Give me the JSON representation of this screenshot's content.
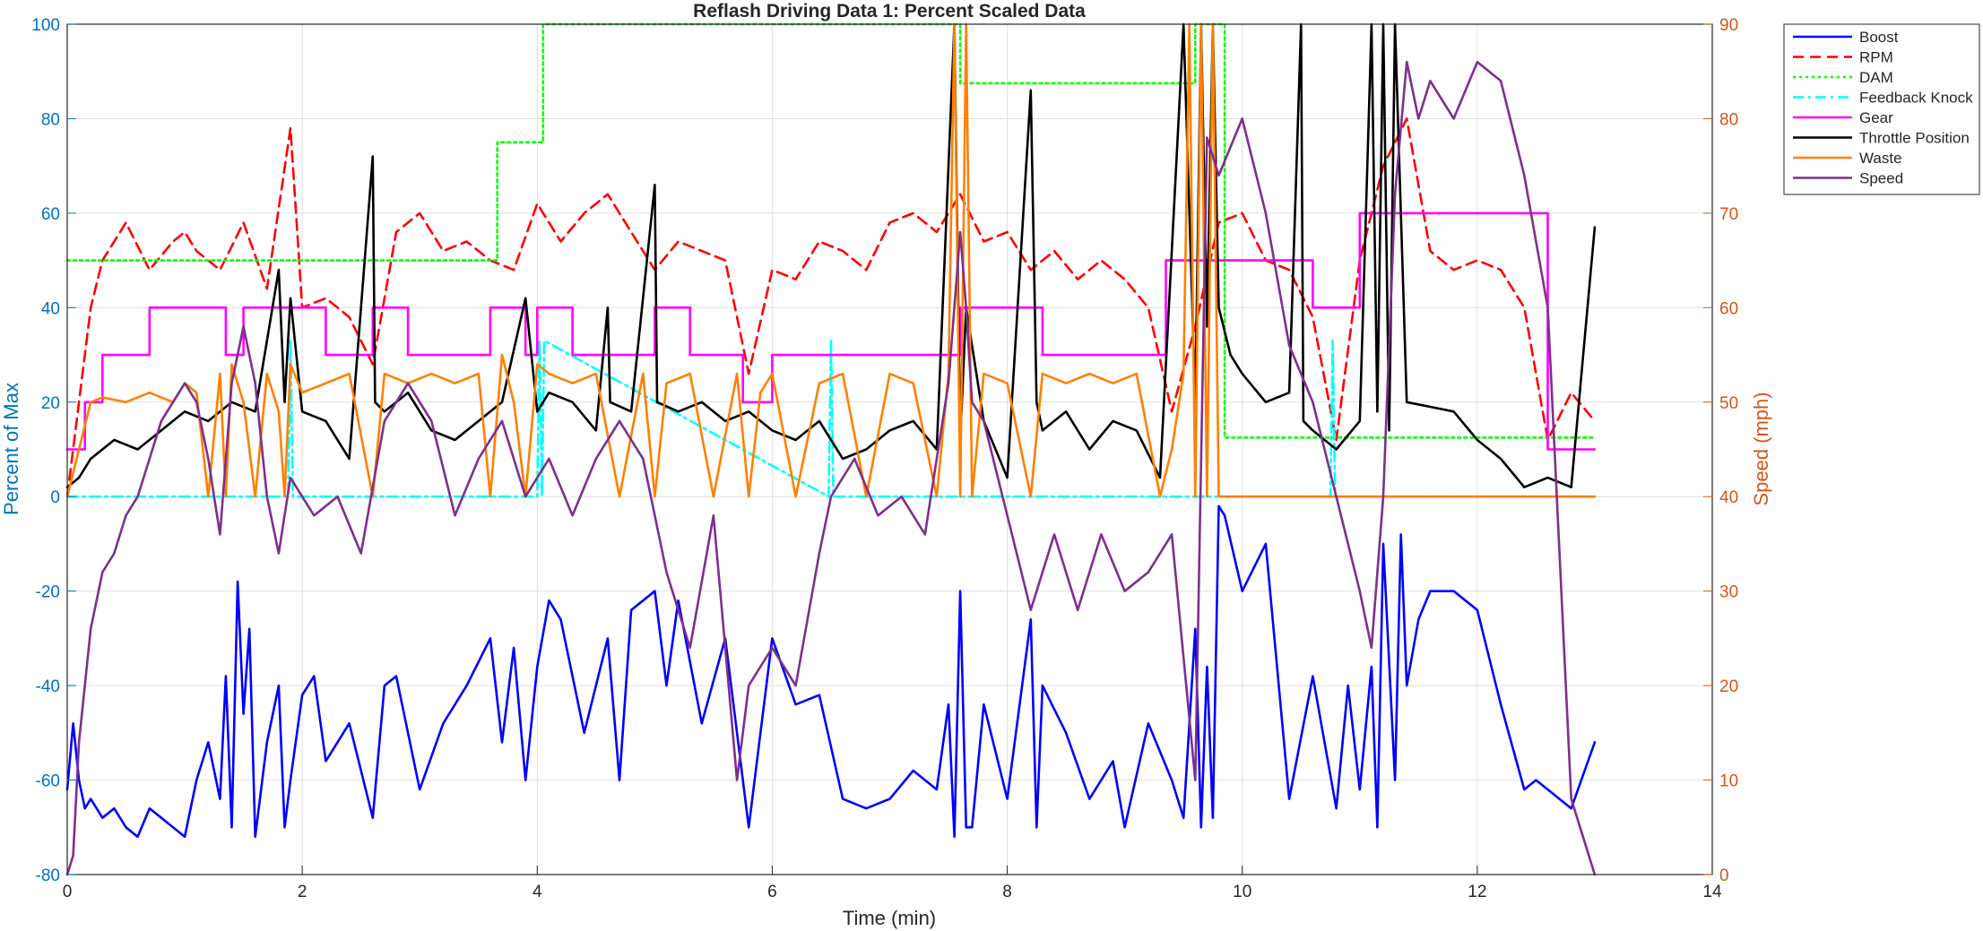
{
  "chart_data": {
    "type": "line",
    "title": "Reflash Driving Data 1: Percent Scaled Data",
    "xlabel": "Time (min)",
    "ylabel": "Percent of Max",
    "ylabel_right": "Speed (mph)",
    "xlim": [
      0,
      14
    ],
    "ylim": [
      -80,
      100
    ],
    "ylim_right": [
      0,
      90
    ],
    "x_ticks": [
      0,
      2,
      4,
      6,
      8,
      10,
      12,
      14
    ],
    "y_ticks": [
      -80,
      -60,
      -40,
      -20,
      0,
      20,
      40,
      60,
      80,
      100
    ],
    "y_ticks_right": [
      0,
      10,
      20,
      30,
      40,
      50,
      60,
      70,
      80,
      90
    ],
    "grid": true,
    "legend": "outside-top-right",
    "series": [
      {
        "name": "Boost",
        "color": "#0000ff",
        "style": "solid",
        "axis": "left",
        "x": [
          0,
          0.05,
          0.1,
          0.15,
          0.2,
          0.3,
          0.4,
          0.5,
          0.6,
          0.7,
          0.8,
          0.9,
          1.0,
          1.1,
          1.2,
          1.3,
          1.35,
          1.4,
          1.45,
          1.5,
          1.55,
          1.6,
          1.7,
          1.8,
          1.85,
          1.9,
          2.0,
          2.1,
          2.2,
          2.4,
          2.6,
          2.7,
          2.8,
          3.0,
          3.2,
          3.4,
          3.6,
          3.7,
          3.8,
          3.9,
          4.0,
          4.1,
          4.2,
          4.4,
          4.6,
          4.7,
          4.8,
          5.0,
          5.1,
          5.2,
          5.4,
          5.6,
          5.8,
          6.0,
          6.2,
          6.4,
          6.6,
          6.8,
          7.0,
          7.2,
          7.4,
          7.5,
          7.55,
          7.6,
          7.65,
          7.7,
          7.8,
          8.0,
          8.2,
          8.25,
          8.3,
          8.5,
          8.7,
          8.9,
          9.0,
          9.2,
          9.4,
          9.5,
          9.6,
          9.65,
          9.7,
          9.75,
          9.8,
          9.85,
          10.0,
          10.2,
          10.4,
          10.6,
          10.8,
          10.9,
          11.0,
          11.1,
          11.15,
          11.2,
          11.3,
          11.35,
          11.4,
          11.5,
          11.6,
          11.8,
          12.0,
          12.2,
          12.4,
          12.5,
          12.6,
          12.8,
          13.0
        ],
        "y": [
          -62,
          -48,
          -60,
          -66,
          -64,
          -68,
          -66,
          -70,
          -72,
          -66,
          -68,
          -70,
          -72,
          -60,
          -52,
          -64,
          -38,
          -70,
          -18,
          -46,
          -28,
          -72,
          -52,
          -40,
          -70,
          -60,
          -42,
          -38,
          -56,
          -48,
          -68,
          -40,
          -38,
          -62,
          -48,
          -40,
          -30,
          -52,
          -32,
          -60,
          -36,
          -22,
          -26,
          -50,
          -30,
          -60,
          -24,
          -20,
          -40,
          -22,
          -48,
          -30,
          -70,
          -30,
          -44,
          -42,
          -64,
          -66,
          -64,
          -58,
          -62,
          -44,
          -72,
          -20,
          -70,
          -70,
          -44,
          -64,
          -26,
          -70,
          -40,
          -50,
          -64,
          -56,
          -70,
          -48,
          -60,
          -68,
          -28,
          -70,
          -36,
          -68,
          -2,
          -4,
          -20,
          -10,
          -64,
          -38,
          -66,
          -40,
          -62,
          -36,
          -70,
          -10,
          -60,
          -8,
          -40,
          -26,
          -20,
          -20,
          -24,
          -44,
          -62,
          -60,
          -62,
          -66,
          -52
        ]
      },
      {
        "name": "RPM",
        "color": "#ff0000",
        "style": "dashed",
        "axis": "left",
        "x": [
          0,
          0.1,
          0.2,
          0.3,
          0.5,
          0.7,
          0.9,
          1.0,
          1.1,
          1.3,
          1.5,
          1.7,
          1.9,
          2.0,
          2.2,
          2.4,
          2.6,
          2.8,
          3.0,
          3.2,
          3.4,
          3.6,
          3.8,
          4.0,
          4.2,
          4.4,
          4.6,
          4.8,
          5.0,
          5.2,
          5.4,
          5.6,
          5.8,
          6.0,
          6.2,
          6.4,
          6.6,
          6.8,
          7.0,
          7.2,
          7.4,
          7.6,
          7.8,
          8.0,
          8.2,
          8.4,
          8.6,
          8.8,
          9.0,
          9.2,
          9.4,
          9.6,
          9.8,
          10.0,
          10.2,
          10.4,
          10.6,
          10.8,
          11.0,
          11.2,
          11.4,
          11.6,
          11.8,
          12.0,
          12.2,
          12.4,
          12.6,
          12.8,
          13.0
        ],
        "y": [
          0,
          20,
          40,
          50,
          58,
          48,
          54,
          56,
          52,
          48,
          58,
          44,
          78,
          40,
          42,
          38,
          28,
          56,
          60,
          52,
          54,
          50,
          48,
          62,
          54,
          60,
          64,
          56,
          48,
          54,
          52,
          50,
          26,
          48,
          46,
          54,
          52,
          48,
          58,
          60,
          56,
          64,
          54,
          56,
          48,
          52,
          46,
          50,
          46,
          40,
          18,
          36,
          58,
          60,
          50,
          48,
          38,
          12,
          50,
          70,
          80,
          52,
          48,
          50,
          48,
          40,
          12,
          22,
          16
        ]
      },
      {
        "name": "DAM",
        "color": "#00ff00",
        "style": "dotted",
        "axis": "left",
        "x": [
          0,
          3.66,
          3.66,
          4.05,
          4.05,
          7.6,
          7.6,
          9.6,
          9.6,
          9.85,
          9.85,
          13.0
        ],
        "y": [
          50,
          50,
          75,
          75,
          100,
          100,
          87.5,
          87.5,
          100,
          100,
          12.5,
          12.5
        ]
      },
      {
        "name": "Feedback Knock",
        "color": "#00ffff",
        "style": "dashdot",
        "axis": "left",
        "x": [
          0,
          1.88,
          1.9,
          1.92,
          4.0,
          4.02,
          4.04,
          4.06,
          6.48,
          6.5,
          6.52,
          10.75,
          10.77,
          10.79,
          13.0
        ],
        "y": [
          0,
          0,
          33,
          0,
          0,
          33,
          0,
          33,
          0,
          33,
          0,
          0,
          33,
          0,
          0
        ]
      },
      {
        "name": "Gear",
        "color": "#ff00ff",
        "style": "solid",
        "axis": "left",
        "x": [
          0,
          0.15,
          0.15,
          0.3,
          0.3,
          0.7,
          0.7,
          1.35,
          1.35,
          1.5,
          1.5,
          2.2,
          2.2,
          2.6,
          2.6,
          2.9,
          2.9,
          3.6,
          3.6,
          3.9,
          3.9,
          4.0,
          4.0,
          4.3,
          4.3,
          5.0,
          5.0,
          5.3,
          5.3,
          5.75,
          5.75,
          6.0,
          6.0,
          6.5,
          6.5,
          7.6,
          7.6,
          8.3,
          8.3,
          8.6,
          8.6,
          9.35,
          9.35,
          9.7,
          9.7,
          10.6,
          10.6,
          11.0,
          11.0,
          11.4,
          11.4,
          12.6,
          12.6,
          13.0
        ],
        "y": [
          10,
          10,
          20,
          20,
          30,
          30,
          40,
          40,
          30,
          30,
          40,
          40,
          30,
          30,
          40,
          40,
          30,
          30,
          40,
          40,
          30,
          30,
          40,
          40,
          30,
          30,
          40,
          40,
          30,
          30,
          20,
          20,
          30,
          30,
          30,
          30,
          40,
          40,
          30,
          30,
          30,
          30,
          50,
          50,
          50,
          50,
          40,
          40,
          60,
          60,
          60,
          60,
          10,
          10
        ]
      },
      {
        "name": "Throttle Position",
        "color": "#000000",
        "style": "solid",
        "axis": "left",
        "x": [
          0,
          0.1,
          0.2,
          0.3,
          0.4,
          0.6,
          0.8,
          1.0,
          1.2,
          1.4,
          1.6,
          1.8,
          1.85,
          1.9,
          2.0,
          2.2,
          2.4,
          2.6,
          2.62,
          2.7,
          2.9,
          3.1,
          3.3,
          3.5,
          3.7,
          3.9,
          4.0,
          4.1,
          4.3,
          4.5,
          4.6,
          4.62,
          4.8,
          5.0,
          5.02,
          5.2,
          5.4,
          5.6,
          5.8,
          6.0,
          6.2,
          6.4,
          6.6,
          6.8,
          7.0,
          7.2,
          7.4,
          7.55,
          7.6,
          7.65,
          7.8,
          8.0,
          8.2,
          8.25,
          8.3,
          8.5,
          8.7,
          8.9,
          9.1,
          9.3,
          9.5,
          9.6,
          9.65,
          9.7,
          9.75,
          9.8,
          9.9,
          10.0,
          10.2,
          10.4,
          10.5,
          10.52,
          10.6,
          10.8,
          11.0,
          11.1,
          11.15,
          11.2,
          11.25,
          11.3,
          11.4,
          11.6,
          11.8,
          12.0,
          12.2,
          12.4,
          12.6,
          12.8,
          13.0
        ],
        "y": [
          2,
          4,
          8,
          10,
          12,
          10,
          14,
          18,
          16,
          20,
          18,
          48,
          20,
          42,
          18,
          16,
          8,
          72,
          20,
          18,
          22,
          14,
          12,
          16,
          20,
          42,
          18,
          22,
          20,
          14,
          40,
          20,
          18,
          66,
          20,
          18,
          20,
          16,
          18,
          14,
          12,
          16,
          8,
          10,
          14,
          16,
          10,
          100,
          12,
          40,
          16,
          4,
          86,
          20,
          14,
          18,
          10,
          16,
          14,
          4,
          100,
          20,
          100,
          36,
          100,
          40,
          30,
          26,
          20,
          22,
          100,
          16,
          14,
          10,
          16,
          100,
          18,
          100,
          14,
          100,
          20,
          19,
          18,
          12,
          8,
          2,
          4,
          2,
          57
        ]
      },
      {
        "name": "Waste",
        "color": "#ff8000",
        "style": "solid",
        "axis": "left",
        "x": [
          0,
          0.1,
          0.2,
          0.3,
          0.5,
          0.7,
          0.9,
          1.0,
          1.1,
          1.2,
          1.3,
          1.35,
          1.4,
          1.5,
          1.6,
          1.7,
          1.8,
          1.85,
          1.9,
          2.0,
          2.2,
          2.4,
          2.6,
          2.7,
          2.9,
          3.1,
          3.3,
          3.5,
          3.6,
          3.7,
          3.8,
          3.9,
          4.0,
          4.1,
          4.3,
          4.5,
          4.7,
          4.9,
          5.0,
          5.1,
          5.3,
          5.5,
          5.7,
          5.8,
          5.9,
          6.0,
          6.2,
          6.4,
          6.6,
          6.8,
          7.0,
          7.2,
          7.4,
          7.5,
          7.55,
          7.6,
          7.65,
          7.7,
          7.8,
          8.0,
          8.2,
          8.3,
          8.5,
          8.7,
          8.9,
          9.1,
          9.3,
          9.4,
          9.5,
          9.55,
          9.6,
          9.65,
          9.7,
          9.75,
          9.8,
          10.0,
          13.0
        ],
        "y": [
          0,
          10,
          20,
          21,
          20,
          22,
          20,
          24,
          22,
          0,
          26,
          0,
          28,
          20,
          0,
          26,
          18,
          0,
          28,
          22,
          24,
          26,
          0,
          26,
          24,
          26,
          24,
          26,
          0,
          30,
          20,
          0,
          28,
          26,
          24,
          26,
          0,
          26,
          0,
          24,
          26,
          0,
          26,
          0,
          22,
          26,
          0,
          24,
          26,
          0,
          26,
          24,
          0,
          26,
          100,
          0,
          100,
          0,
          26,
          24,
          0,
          26,
          24,
          26,
          24,
          26,
          0,
          10,
          26,
          100,
          0,
          100,
          0,
          100,
          0,
          0,
          0
        ]
      },
      {
        "name": "Speed",
        "color": "#7e2f8e",
        "style": "solid",
        "axis": "right",
        "x": [
          0,
          0.05,
          0.1,
          0.2,
          0.3,
          0.4,
          0.5,
          0.6,
          0.7,
          0.8,
          1.0,
          1.1,
          1.2,
          1.3,
          1.4,
          1.5,
          1.6,
          1.7,
          1.8,
          1.9,
          2.0,
          2.1,
          2.3,
          2.5,
          2.7,
          2.9,
          3.1,
          3.3,
          3.5,
          3.7,
          3.9,
          4.1,
          4.3,
          4.5,
          4.7,
          4.9,
          5.1,
          5.3,
          5.5,
          5.7,
          5.8,
          5.9,
          6.0,
          6.2,
          6.4,
          6.5,
          6.7,
          6.9,
          7.1,
          7.3,
          7.5,
          7.6,
          7.65,
          7.7,
          7.8,
          8.0,
          8.2,
          8.4,
          8.6,
          8.8,
          9.0,
          9.2,
          9.4,
          9.6,
          9.7,
          9.8,
          10.0,
          10.2,
          10.4,
          10.6,
          10.8,
          11.0,
          11.1,
          11.2,
          11.3,
          11.4,
          11.5,
          11.6,
          11.8,
          12.0,
          12.2,
          12.4,
          12.6,
          12.8,
          13.0
        ],
        "y": [
          0,
          2,
          14,
          26,
          32,
          34,
          38,
          40,
          44,
          48,
          52,
          50,
          44,
          36,
          52,
          58,
          52,
          40,
          34,
          42,
          40,
          38,
          40,
          34,
          48,
          52,
          48,
          38,
          44,
          48,
          40,
          44,
          38,
          44,
          48,
          44,
          32,
          24,
          38,
          10,
          20,
          22,
          24,
          20,
          34,
          40,
          44,
          38,
          40,
          36,
          52,
          68,
          60,
          50,
          48,
          38,
          28,
          36,
          28,
          36,
          30,
          32,
          36,
          10,
          78,
          74,
          80,
          70,
          56,
          50,
          40,
          30,
          24,
          40,
          72,
          86,
          80,
          84,
          80,
          86,
          84,
          74,
          60,
          8,
          0
        ]
      }
    ]
  }
}
